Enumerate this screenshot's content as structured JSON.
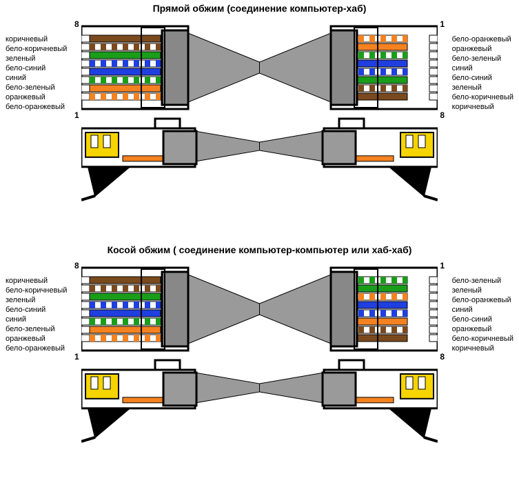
{
  "sections": [
    {
      "title": "Прямой обжим (соединение компьютер-хаб)",
      "left_labels": [
        "коричневый",
        "бело-коричневый",
        "зеленый",
        "бело-синий",
        "синий",
        "бело-зеленый",
        "оранжевый",
        "бело-оранжевый"
      ],
      "right_labels": [
        "бело-оранжевый",
        "оранжевый",
        "бело-зеленый",
        "синий",
        "бело-синий",
        "зеленый",
        "бело-коричневый",
        "коричневый"
      ],
      "left_colors": [
        "#7a4a1e",
        "#ffffff/#7a4a1e",
        "#1a9e1a",
        "#ffffff/#1f3fe0",
        "#1f3fe0",
        "#ffffff/#1a9e1a",
        "#f58220",
        "#ffffff/#f58220"
      ],
      "right_colors": [
        "#ffffff/#f58220",
        "#f58220",
        "#ffffff/#1a9e1a",
        "#1f3fe0",
        "#ffffff/#1f3fe0",
        "#1a9e1a",
        "#ffffff/#7a4a1e",
        "#7a4a1e"
      ],
      "pin_left_top": "8",
      "pin_left_bottom": "1",
      "pin_right_top": "1",
      "pin_right_bottom": "8"
    },
    {
      "title": "Косой обжим ( соединение компьютер-компьютер или хаб-хаб)",
      "left_labels": [
        "коричневый",
        "бело-коричневый",
        "зеленый",
        "бело-синий",
        "синий",
        "бело-зеленый",
        "оранжевый",
        "бело-оранжевый"
      ],
      "right_labels": [
        "бело-зеленый",
        "зеленый",
        "бело-оранжевый",
        "синий",
        "бело-синий",
        "оранжевый",
        "бело-коричневый",
        "коричневый"
      ],
      "left_colors": [
        "#7a4a1e",
        "#ffffff/#7a4a1e",
        "#1a9e1a",
        "#ffffff/#1f3fe0",
        "#1f3fe0",
        "#ffffff/#1a9e1a",
        "#f58220",
        "#ffffff/#f58220"
      ],
      "right_colors": [
        "#ffffff/#1a9e1a",
        "#1a9e1a",
        "#ffffff/#f58220",
        "#1f3fe0",
        "#ffffff/#1f3fe0",
        "#f58220",
        "#ffffff/#7a4a1e",
        "#7a4a1e"
      ],
      "pin_left_top": "8",
      "pin_left_bottom": "1",
      "pin_right_top": "1",
      "pin_right_bottom": "8"
    }
  ],
  "palette": {
    "connector_body": "#ffffff",
    "connector_stroke": "#000000",
    "cable_jacket": "#9a9a9a",
    "pin_gold": "#f5d400",
    "side_gold": "#f5d400",
    "side_orange": "#f58220"
  },
  "geometry": {
    "wire_height": 10,
    "wire_gap": 2,
    "wires": 8,
    "connector_w": 155,
    "connector_h": 120,
    "stripe_seg": 8
  }
}
